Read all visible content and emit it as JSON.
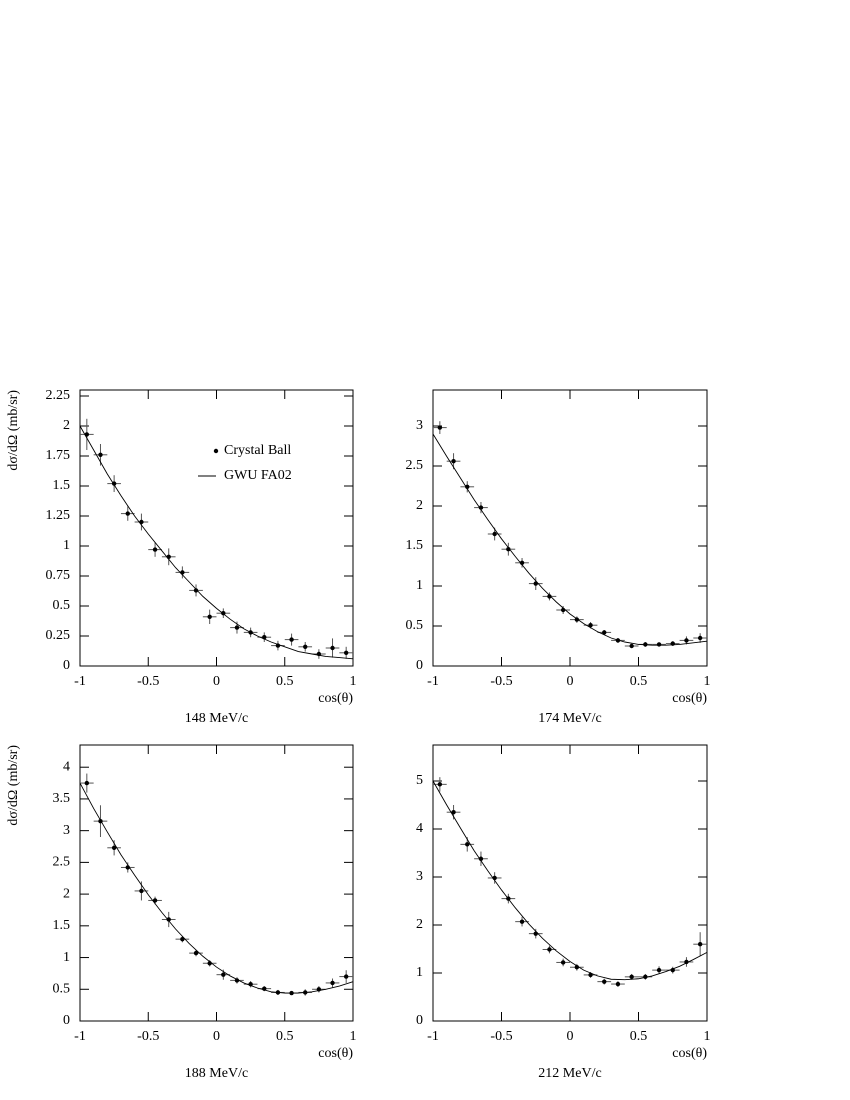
{
  "chart_data": [
    {
      "type": "scatter",
      "subtitle": "148 MeV/c",
      "xlabel": "cos(θ)",
      "ylabel": "dσ/dΩ (mb/sr)",
      "xlim": [
        -1,
        1
      ],
      "xticks": [
        -1,
        -0.5,
        0,
        0.5,
        1
      ],
      "ylim": [
        0,
        2.3
      ],
      "yticks": [
        0,
        0.25,
        0.5,
        0.75,
        1,
        1.25,
        1.5,
        1.75,
        2,
        2.25
      ],
      "series": [
        {
          "name": "Crystal Ball",
          "type": "errorbar",
          "color": "#000000",
          "x": [
            -0.95,
            -0.85,
            -0.75,
            -0.65,
            -0.55,
            -0.45,
            -0.35,
            -0.25,
            -0.15,
            -0.05,
            0.05,
            0.15,
            0.25,
            0.35,
            0.45,
            0.55,
            0.65,
            0.75,
            0.85,
            0.95
          ],
          "values": [
            1.93,
            1.76,
            1.52,
            1.27,
            1.2,
            0.97,
            0.91,
            0.78,
            0.63,
            0.41,
            0.44,
            0.32,
            0.28,
            0.24,
            0.17,
            0.22,
            0.16,
            0.1,
            0.15,
            0.11
          ],
          "yerr": [
            0.13,
            0.09,
            0.07,
            0.06,
            0.07,
            0.06,
            0.07,
            0.05,
            0.05,
            0.06,
            0.04,
            0.05,
            0.04,
            0.04,
            0.04,
            0.05,
            0.04,
            0.04,
            0.08,
            0.05
          ],
          "xerr": 0.05
        },
        {
          "name": "GWU FA02",
          "type": "line",
          "color": "#000000",
          "x": [
            -1,
            -0.9,
            -0.8,
            -0.7,
            -0.6,
            -0.5,
            -0.4,
            -0.3,
            -0.2,
            -0.1,
            0,
            0.1,
            0.2,
            0.3,
            0.4,
            0.5,
            0.6,
            0.7,
            0.8,
            0.9,
            1
          ],
          "values": [
            2.0,
            1.8,
            1.6,
            1.42,
            1.25,
            1.1,
            0.96,
            0.82,
            0.7,
            0.58,
            0.48,
            0.39,
            0.31,
            0.25,
            0.2,
            0.16,
            0.12,
            0.1,
            0.08,
            0.07,
            0.06
          ]
        }
      ]
    },
    {
      "type": "scatter",
      "subtitle": "174 MeV/c",
      "xlabel": "cos(θ)",
      "xlim": [
        -1,
        1
      ],
      "xticks": [
        -1,
        -0.5,
        0,
        0.5,
        1
      ],
      "ylim": [
        0,
        3.45
      ],
      "yticks": [
        0,
        0.5,
        1,
        1.5,
        2,
        2.5,
        3
      ],
      "series": [
        {
          "type": "errorbar",
          "color": "#000000",
          "x": [
            -0.95,
            -0.85,
            -0.75,
            -0.65,
            -0.55,
            -0.45,
            -0.35,
            -0.25,
            -0.15,
            -0.05,
            0.05,
            0.15,
            0.25,
            0.35,
            0.45,
            0.55,
            0.65,
            0.75,
            0.85,
            0.95
          ],
          "values": [
            2.98,
            2.56,
            2.24,
            1.98,
            1.65,
            1.46,
            1.29,
            1.03,
            0.87,
            0.7,
            0.58,
            0.51,
            0.42,
            0.32,
            0.25,
            0.27,
            0.27,
            0.28,
            0.32,
            0.35
          ],
          "yerr": [
            0.08,
            0.1,
            0.07,
            0.07,
            0.08,
            0.08,
            0.06,
            0.08,
            0.05,
            0.05,
            0.04,
            0.04,
            0.03,
            0.03,
            0.02,
            0.03,
            0.02,
            0.03,
            0.05,
            0.06
          ],
          "xerr": 0.05
        },
        {
          "type": "line",
          "color": "#000000",
          "x": [
            -1,
            -0.9,
            -0.8,
            -0.7,
            -0.6,
            -0.5,
            -0.4,
            -0.3,
            -0.2,
            -0.1,
            0,
            0.1,
            0.2,
            0.3,
            0.4,
            0.5,
            0.6,
            0.7,
            0.8,
            0.9,
            1
          ],
          "values": [
            2.9,
            2.62,
            2.35,
            2.08,
            1.83,
            1.59,
            1.37,
            1.16,
            0.97,
            0.8,
            0.65,
            0.53,
            0.43,
            0.35,
            0.3,
            0.27,
            0.26,
            0.26,
            0.27,
            0.29,
            0.31
          ]
        }
      ]
    },
    {
      "type": "scatter",
      "subtitle": "188 MeV/c",
      "xlabel": "cos(θ)",
      "ylabel": "dσ/dΩ (mb/sr)",
      "xlim": [
        -1,
        1
      ],
      "xticks": [
        -1,
        -0.5,
        0,
        0.5,
        1
      ],
      "ylim": [
        0,
        4.35
      ],
      "yticks": [
        0,
        0.5,
        1,
        1.5,
        2,
        2.5,
        3,
        3.5,
        4
      ],
      "series": [
        {
          "type": "errorbar",
          "color": "#000000",
          "x": [
            -0.95,
            -0.85,
            -0.75,
            -0.65,
            -0.55,
            -0.45,
            -0.35,
            -0.25,
            -0.15,
            -0.05,
            0.05,
            0.15,
            0.25,
            0.35,
            0.45,
            0.55,
            0.65,
            0.75,
            0.85,
            0.95
          ],
          "values": [
            3.75,
            3.15,
            2.73,
            2.42,
            2.05,
            1.9,
            1.6,
            1.29,
            1.07,
            0.91,
            0.73,
            0.64,
            0.58,
            0.51,
            0.45,
            0.44,
            0.45,
            0.5,
            0.6,
            0.7
          ],
          "yerr": [
            0.15,
            0.25,
            0.12,
            0.08,
            0.15,
            0.06,
            0.12,
            0.05,
            0.05,
            0.05,
            0.08,
            0.05,
            0.05,
            0.04,
            0.04,
            0.03,
            0.05,
            0.05,
            0.07,
            0.1
          ],
          "xerr": 0.05
        },
        {
          "type": "line",
          "color": "#000000",
          "x": [
            -1,
            -0.9,
            -0.8,
            -0.7,
            -0.6,
            -0.5,
            -0.4,
            -0.3,
            -0.2,
            -0.1,
            0,
            0.1,
            0.2,
            0.3,
            0.4,
            0.5,
            0.6,
            0.7,
            0.8,
            0.9,
            1
          ],
          "values": [
            3.75,
            3.35,
            2.98,
            2.62,
            2.3,
            1.99,
            1.71,
            1.45,
            1.22,
            1.02,
            0.85,
            0.71,
            0.6,
            0.52,
            0.46,
            0.44,
            0.44,
            0.46,
            0.5,
            0.55,
            0.62
          ]
        }
      ]
    },
    {
      "type": "scatter",
      "subtitle": "212 MeV/c",
      "xlabel": "cos(θ)",
      "xlim": [
        -1,
        1
      ],
      "xticks": [
        -1,
        -0.5,
        0,
        0.5,
        1
      ],
      "ylim": [
        0,
        5.75
      ],
      "yticks": [
        0,
        1,
        2,
        3,
        4,
        5
      ],
      "series": [
        {
          "type": "errorbar",
          "color": "#000000",
          "x": [
            -0.95,
            -0.85,
            -0.75,
            -0.65,
            -0.55,
            -0.45,
            -0.35,
            -0.25,
            -0.15,
            -0.05,
            0.05,
            0.15,
            0.25,
            0.35,
            0.45,
            0.55,
            0.65,
            0.75,
            0.85,
            0.95
          ],
          "values": [
            4.93,
            4.35,
            3.68,
            3.38,
            2.98,
            2.55,
            2.07,
            1.82,
            1.49,
            1.22,
            1.12,
            0.96,
            0.82,
            0.77,
            0.92,
            0.92,
            1.06,
            1.06,
            1.23,
            1.6
          ],
          "yerr": [
            0.15,
            0.15,
            0.15,
            0.15,
            0.12,
            0.1,
            0.1,
            0.1,
            0.08,
            0.08,
            0.07,
            0.06,
            0.06,
            0.06,
            0.06,
            0.06,
            0.08,
            0.07,
            0.1,
            0.25
          ],
          "xerr": 0.05
        },
        {
          "type": "line",
          "color": "#000000",
          "x": [
            -1,
            -0.9,
            -0.8,
            -0.7,
            -0.6,
            -0.5,
            -0.4,
            -0.3,
            -0.2,
            -0.1,
            0,
            0.1,
            0.2,
            0.3,
            0.4,
            0.5,
            0.6,
            0.7,
            0.8,
            0.9,
            1
          ],
          "values": [
            5.0,
            4.5,
            4.02,
            3.55,
            3.13,
            2.73,
            2.36,
            2.02,
            1.72,
            1.46,
            1.24,
            1.06,
            0.94,
            0.87,
            0.86,
            0.88,
            0.94,
            1.03,
            1.14,
            1.28,
            1.43
          ]
        }
      ]
    }
  ]
}
